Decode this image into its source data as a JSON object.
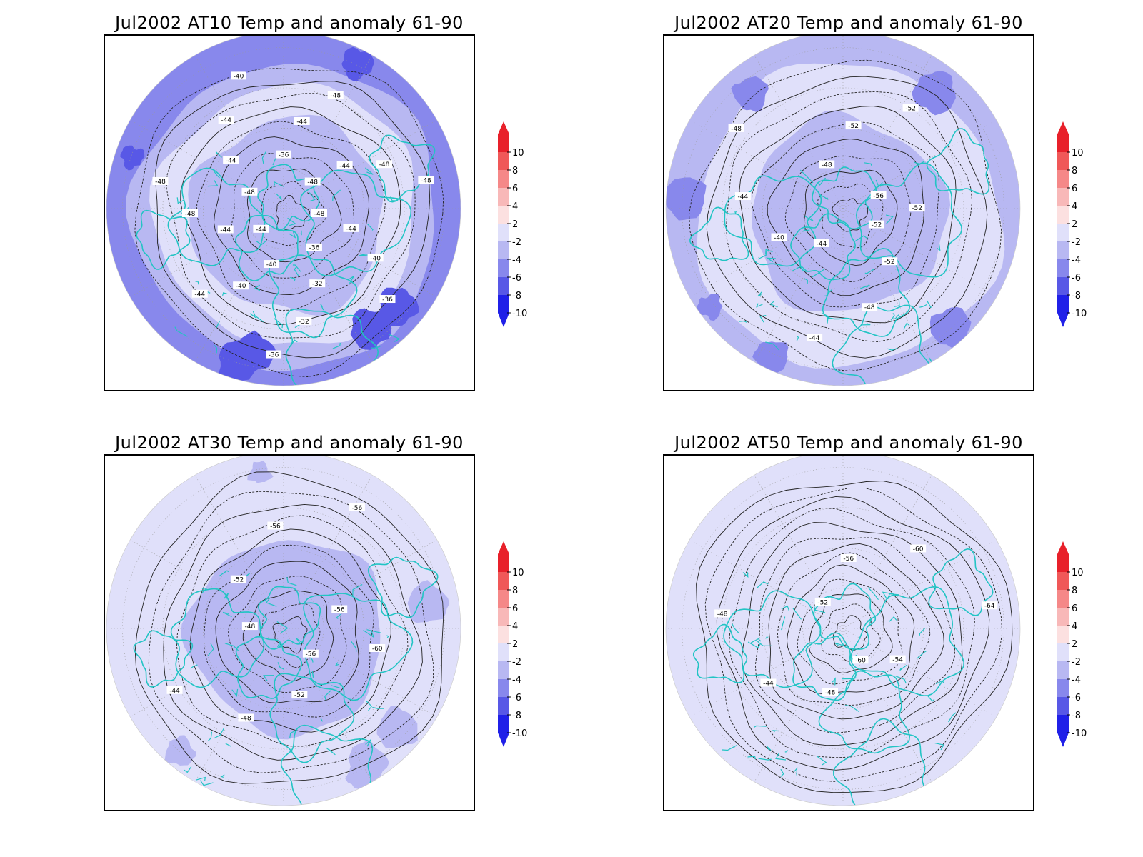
{
  "panels": [
    {
      "id": "at10",
      "title": "Jul2002 AT10 Temp and anomaly 61-90",
      "contour_labels": [
        "-48",
        "-44",
        "-40",
        "-36",
        "-36",
        "-32",
        "-32",
        "-36",
        "-40",
        "-40",
        "-44",
        "-44",
        "-44",
        "-48",
        "-48",
        "-48",
        "-44",
        "-44",
        "-40",
        "-36",
        "-44",
        "-48",
        "-48",
        "-44",
        "-48",
        "-48"
      ],
      "anomaly_band_levels": [
        -6,
        -4,
        -2,
        -4,
        -8
      ]
    },
    {
      "id": "at20",
      "title": "Jul2002 AT20 Temp and anomaly 61-90",
      "contour_labels": [
        "-52",
        "-52",
        "-48",
        "-44",
        "-44",
        "-40",
        "-44",
        "-48",
        "-48",
        "-52",
        "-52",
        "-56",
        "-52"
      ],
      "anomaly_band_levels": [
        -4,
        -2,
        -2,
        -4,
        -6
      ]
    },
    {
      "id": "at30",
      "title": "Jul2002 AT30 Temp and anomaly 61-90",
      "contour_labels": [
        "-56",
        "-52",
        "-48",
        "-44",
        "-48",
        "-52",
        "-56",
        "-56",
        "-56",
        "-60"
      ],
      "anomaly_band_levels": [
        -2,
        -2,
        -2,
        -4,
        -4
      ]
    },
    {
      "id": "at50",
      "title": "Jul2002 AT50 Temp and anomaly 61-90",
      "contour_labels": [
        "-60",
        "-48",
        "-44",
        "-48",
        "-52",
        "-56",
        "-60",
        "-64",
        "-54"
      ],
      "anomaly_band_levels": [
        -2,
        -2,
        -2,
        -2,
        -2
      ]
    }
  ],
  "colorbar": {
    "tick_labels": [
      "10",
      "8",
      "6",
      "4",
      "2",
      "-2",
      "-4",
      "-6",
      "-8",
      "-10"
    ],
    "colors": [
      "#e8202a",
      "#f05858",
      "#f58888",
      "#f8b8b8",
      "#fce0e0",
      "#ffffff",
      "#e0e0fa",
      "#b8b8f2",
      "#8888ec",
      "#5858e6",
      "#2020e8"
    ]
  },
  "coastline_color": "#22c4c4"
}
